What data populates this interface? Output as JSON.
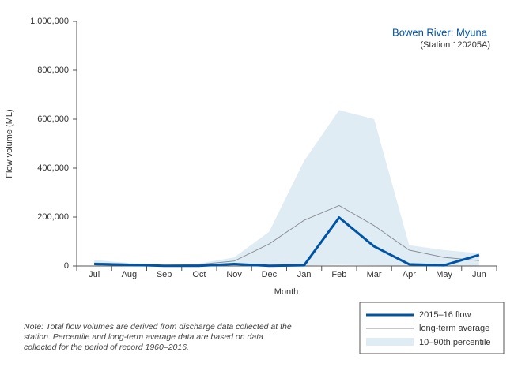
{
  "chart_data": {
    "type": "line",
    "title": "Bowen River: Myuna",
    "subtitle": "(Station 120205A)",
    "x_label": "Month",
    "y_label": "Flow volume (ML)",
    "categories": [
      "Jul",
      "Aug",
      "Sep",
      "Oct",
      "Nov",
      "Dec",
      "Jan",
      "Feb",
      "Mar",
      "Apr",
      "May",
      "Jun"
    ],
    "series": [
      {
        "name": "2015–16 flow",
        "color": "#0054a6",
        "values": [
          8000,
          5000,
          1000,
          1000,
          8000,
          1000,
          3000,
          198000,
          80000,
          7000,
          3000,
          45000
        ]
      },
      {
        "name": "long-term average",
        "color": "#8a8f94",
        "values": [
          12000,
          8000,
          3000,
          6000,
          20000,
          90000,
          187000,
          247000,
          165000,
          65000,
          35000,
          22000
        ]
      }
    ],
    "percentile_band": {
      "name": "10–90th percentile",
      "color": "#dfecf4",
      "lower": [
        2000,
        1000,
        500,
        500,
        1000,
        1000,
        2000,
        5000,
        3000,
        1000,
        1000,
        1000
      ],
      "upper": [
        25000,
        12000,
        5000,
        10000,
        35000,
        140000,
        430000,
        637000,
        600000,
        85000,
        65000,
        52000
      ]
    },
    "ylim": [
      0,
      1000000
    ],
    "yticks": [
      0,
      {
        "value": 200000,
        "label": "200,000"
      },
      {
        "value": 400000,
        "label": "400,000"
      },
      {
        "value": 600000,
        "label": "600,000"
      },
      {
        "value": 800000,
        "label": "800,000"
      },
      {
        "value": 1000000,
        "label": "1,000,000"
      }
    ],
    "note": "Note: Total flow volumes are derived from discharge data collected at the station. Percentile and long-term average data are based on data collected for the period of record 1960–2016."
  }
}
